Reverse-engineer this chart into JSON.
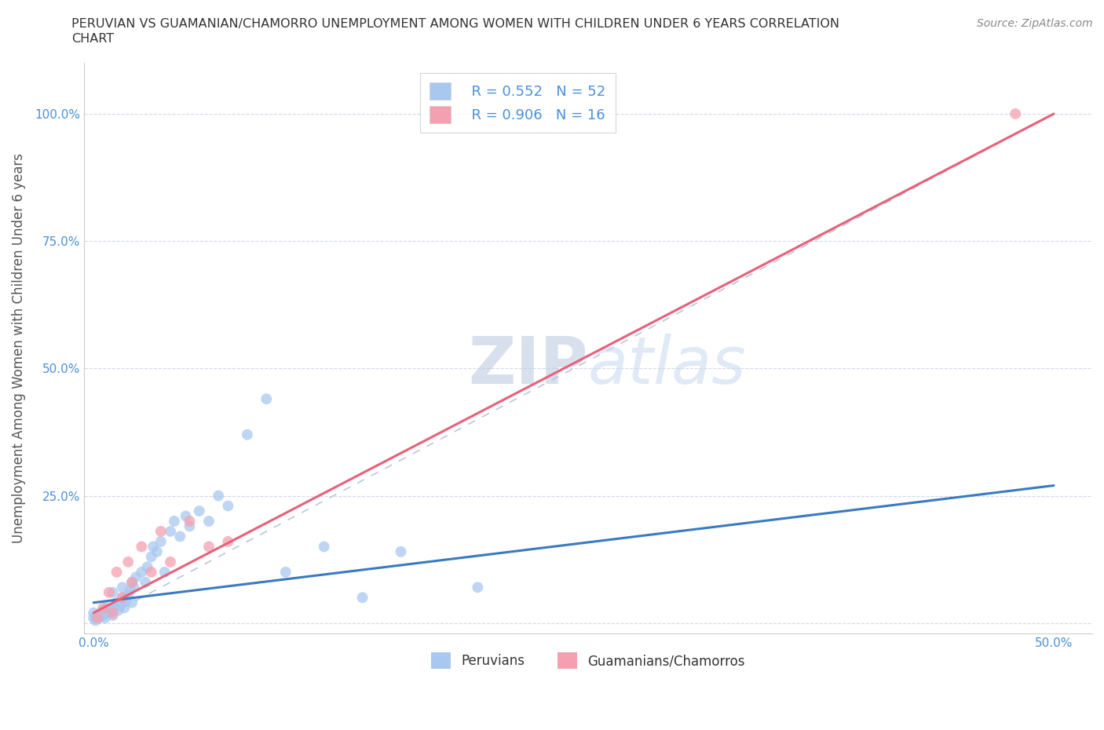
{
  "title_line1": "PERUVIAN VS GUAMANIAN/CHAMORRO UNEMPLOYMENT AMONG WOMEN WITH CHILDREN UNDER 6 YEARS CORRELATION",
  "title_line2": "CHART",
  "source": "Source: ZipAtlas.com",
  "ylabel": "Unemployment Among Women with Children Under 6 years",
  "legend_label1": "Peruvians",
  "legend_label2": "Guamanians/Chamorros",
  "legend_r1": "R = 0.552   N = 52",
  "legend_r2": "R = 0.906   N = 16",
  "blue_color": "#a8c8f0",
  "pink_color": "#f5a0b0",
  "blue_line_color": "#3a7abf",
  "pink_line_color": "#e8607a",
  "ref_line_color": "#b8c8d8",
  "legend_text_color": "#4a90d9",
  "watermark": "ZIPatlas",
  "watermark_color": "#ccd8ee",
  "blue_scatter_x": [
    0.0,
    0.0,
    0.001,
    0.002,
    0.003,
    0.004,
    0.005,
    0.005,
    0.006,
    0.007,
    0.008,
    0.009,
    0.01,
    0.01,
    0.011,
    0.012,
    0.013,
    0.014,
    0.015,
    0.015,
    0.016,
    0.017,
    0.018,
    0.019,
    0.02,
    0.02,
    0.021,
    0.022,
    0.025,
    0.027,
    0.028,
    0.03,
    0.031,
    0.033,
    0.035,
    0.037,
    0.04,
    0.042,
    0.045,
    0.048,
    0.05,
    0.055,
    0.06,
    0.065,
    0.07,
    0.08,
    0.09,
    0.1,
    0.12,
    0.14,
    0.16,
    0.2
  ],
  "blue_scatter_y": [
    0.01,
    0.02,
    0.005,
    0.015,
    0.01,
    0.02,
    0.015,
    0.025,
    0.01,
    0.03,
    0.02,
    0.025,
    0.015,
    0.06,
    0.03,
    0.04,
    0.025,
    0.035,
    0.05,
    0.07,
    0.03,
    0.045,
    0.055,
    0.065,
    0.04,
    0.08,
    0.07,
    0.09,
    0.1,
    0.08,
    0.11,
    0.13,
    0.15,
    0.14,
    0.16,
    0.1,
    0.18,
    0.2,
    0.17,
    0.21,
    0.19,
    0.22,
    0.2,
    0.25,
    0.23,
    0.37,
    0.44,
    0.1,
    0.15,
    0.05,
    0.14,
    0.07
  ],
  "pink_scatter_x": [
    0.002,
    0.005,
    0.008,
    0.01,
    0.012,
    0.015,
    0.018,
    0.02,
    0.025,
    0.03,
    0.035,
    0.04,
    0.05,
    0.06,
    0.07,
    0.48
  ],
  "pink_scatter_y": [
    0.01,
    0.03,
    0.06,
    0.02,
    0.1,
    0.05,
    0.12,
    0.08,
    0.15,
    0.1,
    0.18,
    0.12,
    0.2,
    0.15,
    0.16,
    1.0
  ],
  "blue_trend_x": [
    0.0,
    0.5
  ],
  "blue_trend_y": [
    0.04,
    0.27
  ],
  "pink_trend_x": [
    0.0,
    0.5
  ],
  "pink_trend_y": [
    0.02,
    1.0
  ],
  "ref_line_x": [
    0.0,
    0.5
  ],
  "ref_line_y": [
    0.0,
    1.0
  ],
  "xlim": [
    -0.005,
    0.52
  ],
  "ylim": [
    -0.02,
    1.1
  ],
  "xticks": [
    0.0,
    0.1,
    0.2,
    0.3,
    0.4,
    0.5
  ],
  "xtick_labels": [
    "0.0%",
    "",
    "",
    "",
    "",
    "50.0%"
  ],
  "yticks": [
    0.0,
    0.25,
    0.5,
    0.75,
    1.0
  ],
  "ytick_labels": [
    "",
    "25.0%",
    "50.0%",
    "75.0%",
    "100.0%"
  ]
}
